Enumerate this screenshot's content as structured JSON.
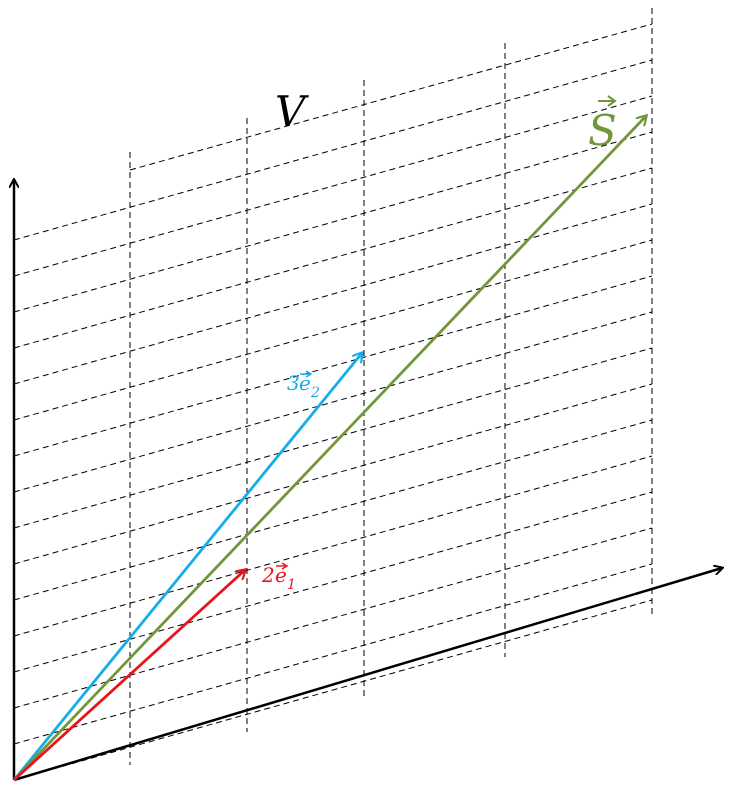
{
  "diagram": {
    "space_label": "V",
    "vectors": [
      {
        "id": "e1",
        "label": "2",
        "symbol": "e",
        "subscript": "1",
        "color": "#e8141b"
      },
      {
        "id": "e2",
        "label": "3",
        "symbol": "e",
        "subscript": "2",
        "color": "#16aee8"
      },
      {
        "id": "s",
        "label": "S",
        "color": "#72963a"
      }
    ],
    "axis_color": "#000000",
    "grid_style": "dashed"
  }
}
